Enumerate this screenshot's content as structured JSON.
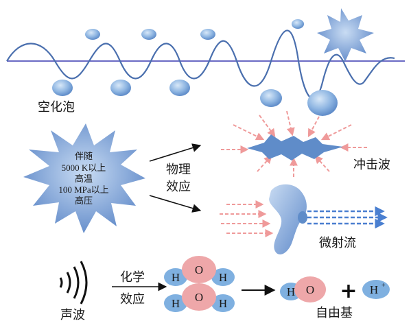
{
  "labels": {
    "cavitation": "空化泡",
    "star_line1": "伴随",
    "star_line2": "5000 K以上",
    "star_line3": "高温",
    "star_line4": "100 MPa以上",
    "star_line5": "高压",
    "physical_line1": "物理",
    "physical_line2": "效应",
    "shockwave": "冲击波",
    "microjet": "微射流",
    "chemical_line1": "化学",
    "chemical_line2": "效应",
    "sound": "声波",
    "radical": "自由基"
  },
  "atoms": {
    "h": "H",
    "o": "O",
    "plus": "+",
    "h_ion": "H",
    "h_ion_sup": "+"
  },
  "colors": {
    "wave": "#4a6fae",
    "axis": "#6b6bc4",
    "bubble": "#7ea9dc",
    "star": "#6f95cf",
    "arrow_pink": "#ef9a9a",
    "arrow_blue": "#4a7fd0",
    "oxygen": "#eea7a9",
    "hydrogen": "#7fb0e0"
  }
}
